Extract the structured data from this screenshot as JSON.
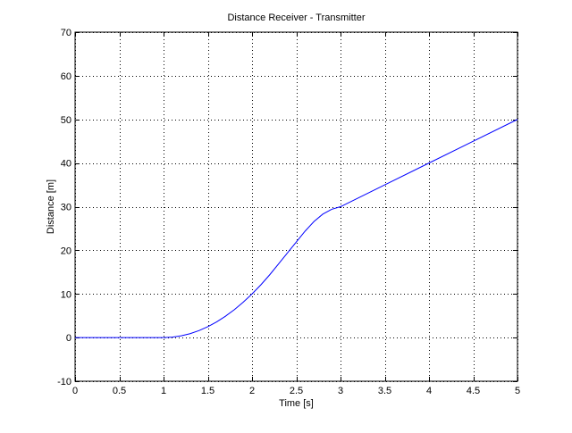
{
  "chart_data": {
    "type": "line",
    "title": "Distance Receiver - Transmitter",
    "xlabel": "Time [s]",
    "ylabel": "Distance [m]",
    "xlim": [
      0,
      5
    ],
    "ylim": [
      -10,
      70
    ],
    "xticks": [
      0,
      0.5,
      1,
      1.5,
      2,
      2.5,
      3,
      3.5,
      4,
      4.5,
      5
    ],
    "yticks": [
      -10,
      0,
      10,
      20,
      30,
      40,
      50,
      60,
      70
    ],
    "xtick_labels": [
      "0",
      "0.5",
      "1",
      "1.5",
      "2",
      "2.5",
      "3",
      "3.5",
      "4",
      "4.5",
      "5"
    ],
    "ytick_labels": [
      "-10",
      "0",
      "10",
      "20",
      "30",
      "40",
      "50",
      "60",
      "70"
    ],
    "grid": true,
    "grid_style": "dotted",
    "line_color": "#0000ff",
    "series": [
      {
        "x": [
          0,
          0.5,
          1.0,
          1.1,
          1.2,
          1.3,
          1.4,
          1.5,
          1.6,
          1.7,
          1.8,
          1.9,
          2.0,
          2.1,
          2.2,
          2.3,
          2.4,
          2.5,
          2.6,
          2.7,
          2.8,
          2.9,
          3.0,
          3.5,
          4.0,
          4.5,
          5.0
        ],
        "values": [
          0,
          0,
          0,
          0.1,
          0.4,
          0.9,
          1.6,
          2.5,
          3.6,
          4.9,
          6.4,
          8.1,
          10.0,
          12.1,
          14.4,
          16.9,
          19.4,
          21.9,
          24.4,
          26.6,
          28.3,
          29.4,
          30.0,
          35.0,
          40.0,
          45.0,
          50.0
        ]
      }
    ]
  }
}
